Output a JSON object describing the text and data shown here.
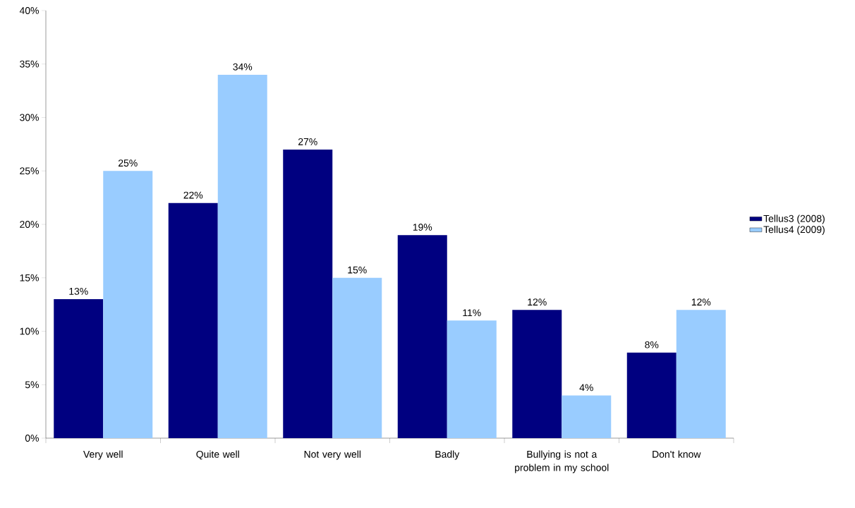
{
  "chart_data": {
    "type": "bar",
    "categories": [
      "Very well",
      "Quite well",
      "Not very well",
      "Badly",
      "Bullying is not a problem in my school",
      "Don't know"
    ],
    "series": [
      {
        "name": "Tellus3 (2008)",
        "color": "#000080",
        "values": [
          13,
          22,
          27,
          19,
          12,
          8
        ],
        "value_labels": [
          "13%",
          "22%",
          "27%",
          "19%",
          "12%",
          "8%"
        ]
      },
      {
        "name": "Tellus4 (2009)",
        "color": "#99ccff",
        "values": [
          25,
          34,
          15,
          11,
          4,
          12
        ],
        "value_labels": [
          "25%",
          "34%",
          "15%",
          "11%",
          "4%",
          "12%"
        ]
      }
    ],
    "ylim": [
      0,
      40
    ],
    "yticks": [
      {
        "value": 0,
        "label": "0%"
      },
      {
        "value": 5,
        "label": "5%"
      },
      {
        "value": 10,
        "label": "10%"
      },
      {
        "value": 15,
        "label": "15%"
      },
      {
        "value": 20,
        "label": "20%"
      },
      {
        "value": 25,
        "label": "25%"
      },
      {
        "value": 30,
        "label": "30%"
      },
      {
        "value": 35,
        "label": "35%"
      },
      {
        "value": 40,
        "label": "40%"
      }
    ],
    "grid": false,
    "legend": "right"
  }
}
